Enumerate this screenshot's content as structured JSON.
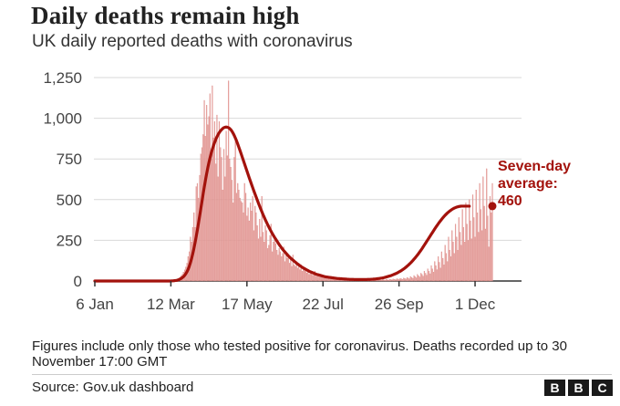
{
  "header": {
    "title": "Daily deaths remain high",
    "subtitle": "UK daily reported deaths with coronavirus"
  },
  "footer": {
    "note": "Figures include only those who tested positive for coronavirus. Deaths recorded up to 30 November 17:00 GMT",
    "source": "Source: Gov.uk dashboard",
    "logo": [
      "B",
      "B",
      "C"
    ]
  },
  "colors": {
    "bars": "#e8a6a3",
    "bar_edge": "#d9827e",
    "average_line": "#a3120c",
    "annotation": "#a3120c",
    "grid": "#d9d9d9",
    "axis": "#333333"
  },
  "chart_data": {
    "type": "bar",
    "title": "",
    "xlabel": "",
    "ylabel": "",
    "ylim": [
      0,
      1250
    ],
    "yticks": [
      0,
      250,
      500,
      750,
      1000,
      1250
    ],
    "ytick_labels": [
      "0",
      "250",
      "500",
      "750",
      "1,000",
      "1,250"
    ],
    "xtick_labels": [
      "6 Jan",
      "12 Mar",
      "17 May",
      "22 Jul",
      "26 Sep",
      "1 Dec"
    ],
    "x_unit": "days",
    "x_start": "6 Jan",
    "x_end": "30 Nov",
    "annotation": {
      "line1": "Seven-day",
      "line2": "average:",
      "line3": "460",
      "value": 460
    },
    "series": [
      {
        "name": "Daily deaths",
        "kind": "bars",
        "values": [
          0,
          0,
          0,
          0,
          0,
          0,
          0,
          0,
          0,
          0,
          0,
          0,
          0,
          0,
          0,
          0,
          0,
          0,
          0,
          0,
          0,
          0,
          0,
          0,
          0,
          0,
          0,
          0,
          0,
          0,
          0,
          0,
          0,
          0,
          0,
          0,
          0,
          0,
          0,
          0,
          0,
          0,
          0,
          0,
          0,
          0,
          0,
          0,
          0,
          0,
          0,
          0,
          0,
          0,
          0,
          0,
          0,
          0,
          0,
          0,
          0,
          0,
          0,
          0,
          0,
          1,
          1,
          2,
          3,
          4,
          6,
          9,
          12,
          18,
          24,
          33,
          42,
          55,
          68,
          85,
          110,
          150,
          180,
          270,
          240,
          330,
          420,
          330,
          580,
          600,
          510,
          650,
          780,
          820,
          900,
          1110,
          890,
          1080,
          960,
          1010,
          1150,
          750,
          1200,
          880,
          980,
          720,
          1020,
          640,
          980,
          820,
          760,
          560,
          810,
          640,
          920,
          770,
          1230,
          750,
          700,
          620,
          480,
          760,
          860,
          540,
          600,
          560,
          510,
          490,
          480,
          420,
          600,
          540,
          400,
          450,
          370,
          480,
          430,
          520,
          310,
          460,
          420,
          340,
          260,
          380,
          270,
          520,
          300,
          240,
          340,
          310,
          200,
          220,
          280,
          350,
          180,
          240,
          260,
          230,
          190,
          160,
          200,
          180,
          150,
          170,
          210,
          120,
          160,
          140,
          150,
          110,
          130,
          90,
          160,
          100,
          90,
          120,
          80,
          110,
          70,
          100,
          60,
          90,
          70,
          60,
          50,
          70,
          40,
          60,
          55,
          35,
          50,
          60,
          30,
          45,
          40,
          25,
          40,
          30,
          20,
          35,
          25,
          18,
          30,
          20,
          15,
          25,
          18,
          12,
          22,
          15,
          10,
          20,
          14,
          10,
          18,
          12,
          9,
          15,
          10,
          8,
          14,
          10,
          8,
          12,
          9,
          7,
          12,
          8,
          6,
          10,
          8,
          5,
          10,
          8,
          5,
          9,
          7,
          5,
          9,
          7,
          4,
          8,
          6,
          4,
          8,
          6,
          4,
          8,
          6,
          5,
          9,
          7,
          5,
          10,
          8,
          6,
          11,
          9,
          7,
          12,
          10,
          8,
          14,
          12,
          9,
          16,
          14,
          10,
          18,
          15,
          12,
          22,
          18,
          14,
          28,
          22,
          17,
          34,
          27,
          20,
          40,
          32,
          25,
          48,
          40,
          30,
          60,
          48,
          36,
          75,
          60,
          45,
          95,
          75,
          55,
          120,
          95,
          70,
          150,
          115,
          80,
          180,
          140,
          100,
          220,
          170,
          120,
          270,
          190,
          150,
          310,
          240,
          170,
          350,
          270,
          190,
          390,
          300,
          220,
          440,
          330,
          240,
          480,
          350,
          250,
          500,
          370,
          260,
          530,
          390,
          270,
          560,
          420,
          300,
          600,
          440,
          310,
          640,
          460,
          320,
          690,
          400,
          210,
          520,
          420,
          600
        ]
      },
      {
        "name": "Seven-day average",
        "kind": "line",
        "values": [
          0,
          0,
          0,
          0,
          0,
          0,
          0,
          0,
          0,
          0,
          0,
          0,
          0,
          0,
          0,
          0,
          0,
          0,
          0,
          0,
          0,
          0,
          0,
          0,
          0,
          0,
          0,
          0,
          0,
          0,
          0,
          0,
          0,
          0,
          0,
          0,
          0,
          0,
          0,
          0,
          0,
          0,
          0,
          0,
          0,
          0,
          0,
          0,
          0,
          0,
          0,
          0,
          0,
          0,
          0,
          0,
          0,
          0,
          0,
          0,
          0,
          0,
          0,
          0,
          0,
          0,
          0,
          1,
          1,
          2,
          3,
          4,
          6,
          8,
          12,
          16,
          21,
          27,
          35,
          45,
          57,
          72,
          91,
          113,
          139,
          168,
          200,
          236,
          274,
          314,
          356,
          400,
          445,
          490,
          535,
          578,
          619,
          658,
          694,
          727,
          757,
          785,
          810,
          832,
          852,
          870,
          886,
          900,
          912,
          922,
          930,
          937,
          942,
          945,
          946,
          945,
          942,
          937,
          930,
          920,
          908,
          894,
          878,
          861,
          842,
          822,
          802,
          781,
          760,
          739,
          718,
          697,
          676,
          655,
          634,
          614,
          594,
          574,
          554,
          535,
          516,
          497,
          478,
          460,
          442,
          425,
          408,
          392,
          376,
          361,
          346,
          332,
          318,
          305,
          292,
          280,
          268,
          257,
          246,
          235,
          224,
          214,
          204,
          195,
          186,
          178,
          170,
          162,
          154,
          147,
          140,
          134,
          128,
          122,
          116,
          110,
          104,
          99,
          94,
          89,
          84,
          80,
          76,
          72,
          68,
          64,
          60,
          57,
          54,
          51,
          48,
          45,
          42,
          40,
          38,
          36,
          34,
          32,
          30,
          28,
          26,
          25,
          24,
          23,
          22,
          21,
          20,
          19,
          18,
          17,
          16,
          15,
          15,
          14,
          14,
          13,
          13,
          12,
          12,
          11,
          11,
          10,
          10,
          10,
          10,
          9,
          9,
          9,
          9,
          9,
          9,
          9,
          9,
          9,
          9,
          9,
          9,
          10,
          10,
          10,
          11,
          11,
          12,
          12,
          13,
          14,
          15,
          16,
          17,
          18,
          19,
          21,
          23,
          25,
          27,
          29,
          31,
          33,
          36,
          39,
          42,
          45,
          48,
          52,
          56,
          60,
          64,
          69,
          74,
          79,
          85,
          91,
          97,
          104,
          111,
          118,
          126,
          134,
          142,
          151,
          160,
          169,
          179,
          189,
          199,
          210,
          221,
          232,
          243,
          254,
          265,
          276,
          287,
          298,
          309,
          320,
          331,
          341,
          351,
          361,
          370,
          379,
          388,
          396,
          404,
          411,
          418,
          424,
          430,
          435,
          440,
          444,
          448,
          451,
          454,
          456,
          458,
          459,
          460,
          460,
          460,
          460,
          460,
          460,
          460,
          460
        ]
      }
    ]
  }
}
